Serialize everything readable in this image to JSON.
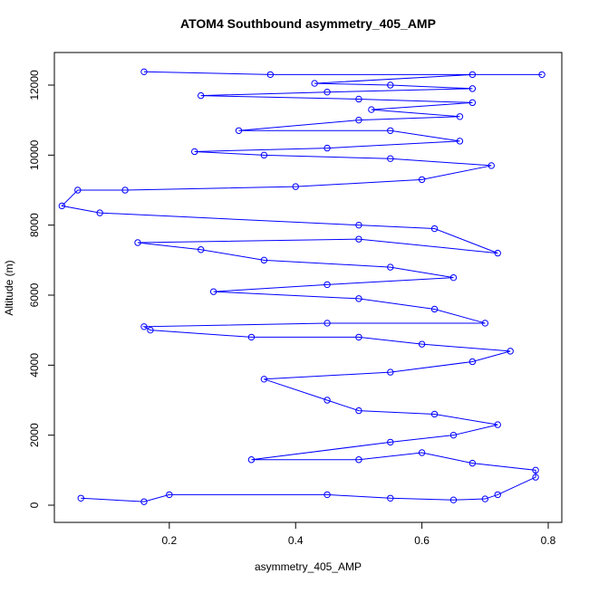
{
  "chart_data": {
    "type": "line",
    "markers": true,
    "title": "ATOM4 Southbound asymmetry_405_AMP",
    "x_label": "asymmetry_405_AMP",
    "y_label": "Altitude (m)",
    "color": "#0000ff",
    "x": [
      0.06,
      0.16,
      0.2,
      0.45,
      0.55,
      0.65,
      0.7,
      0.72,
      0.78,
      0.78,
      0.68,
      0.6,
      0.5,
      0.33,
      0.55,
      0.65,
      0.72,
      0.62,
      0.5,
      0.45,
      0.35,
      0.55,
      0.68,
      0.74,
      0.6,
      0.5,
      0.33,
      0.17,
      0.16,
      0.45,
      0.7,
      0.62,
      0.5,
      0.27,
      0.45,
      0.65,
      0.55,
      0.35,
      0.25,
      0.15,
      0.5,
      0.72,
      0.62,
      0.5,
      0.09,
      0.03,
      0.055,
      0.13,
      0.4,
      0.6,
      0.71,
      0.55,
      0.35,
      0.24,
      0.45,
      0.66,
      0.55,
      0.31,
      0.5,
      0.66,
      0.52,
      0.68,
      0.5,
      0.25,
      0.45,
      0.68,
      0.55,
      0.43,
      0.68,
      0.79,
      0.36,
      0.16
    ],
    "values": [
      200,
      100,
      300,
      300,
      200,
      150,
      180,
      300,
      800,
      1000,
      1200,
      1500,
      1300,
      1300,
      1800,
      2000,
      2300,
      2600,
      2700,
      3000,
      3600,
      3800,
      4100,
      4400,
      4600,
      4800,
      4800,
      5000,
      5100,
      5200,
      5200,
      5600,
      5900,
      6100,
      6300,
      6500,
      6800,
      7000,
      7300,
      7500,
      7600,
      7200,
      7900,
      8000,
      8350,
      8550,
      9000,
      9000,
      9100,
      9300,
      9700,
      9900,
      10000,
      10100,
      10200,
      10400,
      10700,
      10700,
      11000,
      11100,
      11300,
      11500,
      11600,
      11700,
      11800,
      11900,
      12000,
      12050,
      12300,
      12300,
      12300,
      12380
    ],
    "xlim": [
      0.018,
      0.8215
    ],
    "ylim": [
      -491,
      12931
    ],
    "xticks": [
      0.2,
      0.4,
      0.6,
      0.8
    ],
    "yticks": [
      0,
      2000,
      4000,
      6000,
      8000,
      10000,
      12000
    ]
  }
}
